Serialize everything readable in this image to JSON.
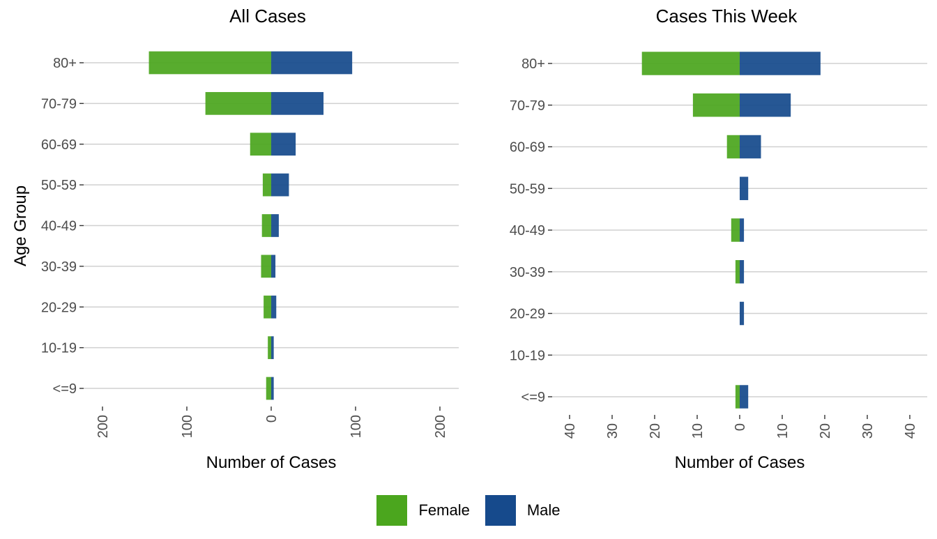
{
  "legend": {
    "female_label": "Female",
    "male_label": "Male",
    "female_color": "#4ba61e",
    "male_color": "#164a8c"
  },
  "chart_data": [
    {
      "type": "bar",
      "title": "All Cases",
      "xlabel": "Number of Cases",
      "ylabel": "Age Group",
      "orientation": "horizontal-population-pyramid",
      "categories": [
        "80+",
        "70-79",
        "60-69",
        "50-59",
        "40-49",
        "30-39",
        "20-29",
        "10-19",
        "<=9"
      ],
      "series": [
        {
          "name": "Female",
          "values": [
            145,
            78,
            25,
            10,
            11,
            12,
            9,
            4,
            6
          ]
        },
        {
          "name": "Male",
          "values": [
            96,
            62,
            29,
            21,
            9,
            5,
            6,
            3,
            3
          ]
        }
      ],
      "xlim": [
        -200,
        200
      ],
      "xticks": [
        -200,
        -100,
        0,
        100,
        200
      ],
      "xtick_labels": [
        "200",
        "100",
        "0",
        "100",
        "200"
      ],
      "grid": "horizontal"
    },
    {
      "type": "bar",
      "title": "Cases This Week",
      "xlabel": "Number of Cases",
      "ylabel": "",
      "orientation": "horizontal-population-pyramid",
      "categories": [
        "80+",
        "70-79",
        "60-69",
        "50-59",
        "40-49",
        "30-39",
        "20-29",
        "10-19",
        "<=9"
      ],
      "series": [
        {
          "name": "Female",
          "values": [
            23,
            11,
            3,
            0,
            2,
            1,
            0,
            0,
            1
          ]
        },
        {
          "name": "Male",
          "values": [
            19,
            12,
            5,
            2,
            1,
            1,
            1,
            0,
            2
          ]
        }
      ],
      "xlim": [
        -40,
        40
      ],
      "xticks": [
        -40,
        -30,
        -20,
        -10,
        0,
        10,
        20,
        30,
        40
      ],
      "xtick_labels": [
        "40",
        "30",
        "20",
        "10",
        "0",
        "10",
        "20",
        "30",
        "40"
      ],
      "grid": "horizontal"
    }
  ]
}
